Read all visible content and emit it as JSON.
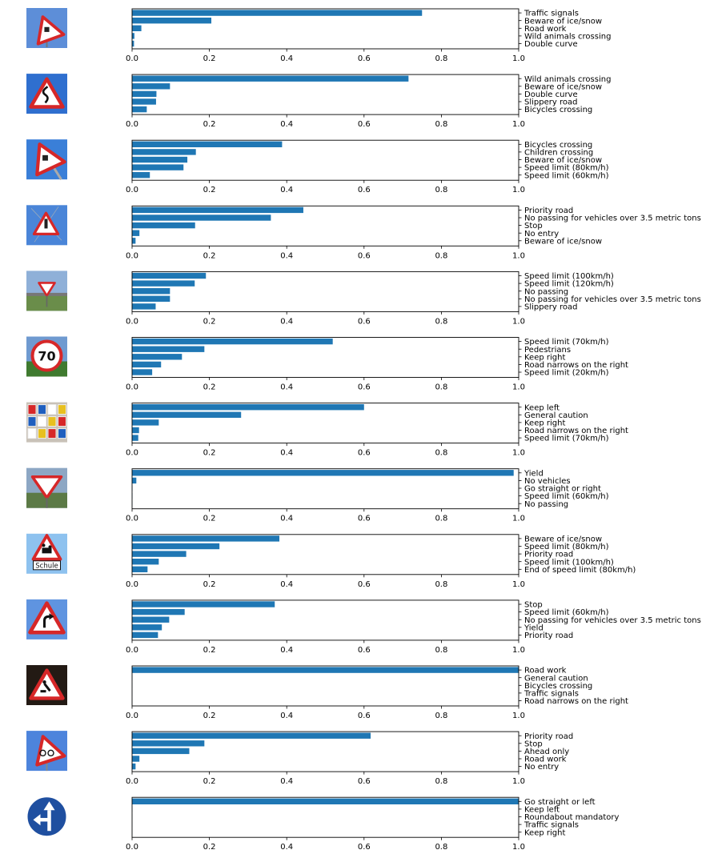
{
  "chart_data": {
    "type": "bar",
    "orientation": "horizontal",
    "xlim": [
      0,
      1
    ],
    "xticks": [
      "0.0",
      "0.2",
      "0.4",
      "0.6",
      "0.8",
      "1.0"
    ],
    "colors": {
      "bar": "#1f77b4",
      "axis": "#000000"
    },
    "grid": false,
    "panels": [
      {
        "thumbnail": "curvy-road-warning-sign",
        "categories": [
          "Traffic signals",
          "Beware of ice/snow",
          "Road work",
          "Wild animals crossing",
          "Double curve"
        ],
        "values": [
          0.75,
          0.205,
          0.024,
          0.006,
          0.005
        ]
      },
      {
        "thumbnail": "double-curve-warning-sign",
        "categories": [
          "Wild animals crossing",
          "Beware of ice/snow",
          "Double curve",
          "Slippery road",
          "Bicycles crossing"
        ],
        "values": [
          0.715,
          0.098,
          0.063,
          0.062,
          0.038
        ]
      },
      {
        "thumbnail": "slippery-road-warning-sign",
        "categories": [
          "Bicycles crossing",
          "Children crossing",
          "Beware of ice/snow",
          "Speed limit (80km/h)",
          "Speed limit (60km/h)"
        ],
        "values": [
          0.388,
          0.165,
          0.143,
          0.133,
          0.046
        ]
      },
      {
        "thumbnail": "general-warning-sign",
        "categories": [
          "Priority road",
          "No passing for vehicles over 3.5 metric tons",
          "Stop",
          "No entry",
          "Beware of ice/snow"
        ],
        "values": [
          0.443,
          0.359,
          0.163,
          0.019,
          0.009
        ]
      },
      {
        "thumbnail": "yield-sign-landscape",
        "categories": [
          "Speed limit (100km/h)",
          "Speed limit (120km/h)",
          "No passing",
          "No passing for vehicles over 3.5 metric tons",
          "Slippery road"
        ],
        "values": [
          0.191,
          0.162,
          0.098,
          0.098,
          0.061
        ]
      },
      {
        "thumbnail": "speed-limit-70-sign",
        "categories": [
          "Speed limit (70km/h)",
          "Pedestrians",
          "Keep right",
          "Road narrows on the right",
          "Speed limit (20km/h)"
        ],
        "values": [
          0.519,
          0.187,
          0.129,
          0.075,
          0.052
        ]
      },
      {
        "thumbnail": "multiple-signs-cluster",
        "categories": [
          "Keep left",
          "General caution",
          "Keep right",
          "Road narrows on the right",
          "Speed limit (70km/h)"
        ],
        "values": [
          0.6,
          0.282,
          0.069,
          0.018,
          0.016
        ]
      },
      {
        "thumbnail": "yield-sign",
        "categories": [
          "Yield",
          "No vehicles",
          "Go straight or right",
          "Speed limit (60km/h)",
          "No passing"
        ],
        "values": [
          0.987,
          0.011,
          0.001,
          0.001,
          0.0005
        ]
      },
      {
        "thumbnail": "children-crossing-sign-schule",
        "categories": [
          "Beware of ice/snow",
          "Speed limit (80km/h)",
          "Priority road",
          "Speed limit (100km/h)",
          "End of speed limit (80km/h)"
        ],
        "values": [
          0.381,
          0.226,
          0.14,
          0.069,
          0.04
        ]
      },
      {
        "thumbnail": "curve-right-warning-sign",
        "categories": [
          "Stop",
          "Speed limit (60km/h)",
          "No passing for vehicles over 3.5 metric tons",
          "Yield",
          "Priority road"
        ],
        "values": [
          0.369,
          0.136,
          0.096,
          0.077,
          0.067
        ]
      },
      {
        "thumbnail": "road-work-sign",
        "categories": [
          "Road work",
          "General caution",
          "Bicycles crossing",
          "Traffic signals",
          "Road narrows on the right"
        ],
        "values": [
          1.0,
          0.0005,
          0.0004,
          0.0003,
          0.0002
        ]
      },
      {
        "thumbnail": "bicycles-crossing-sign",
        "categories": [
          "Priority road",
          "Stop",
          "Ahead only",
          "Road work",
          "No entry"
        ],
        "values": [
          0.617,
          0.187,
          0.148,
          0.019,
          0.009
        ]
      },
      {
        "thumbnail": "go-straight-or-left-sign",
        "categories": [
          "Go straight or left",
          "Keep left",
          "Roundabout mandatory",
          "Traffic signals",
          "Keep right"
        ],
        "values": [
          1.0,
          0.0005,
          0.0004,
          0.0003,
          0.0002
        ]
      }
    ]
  }
}
